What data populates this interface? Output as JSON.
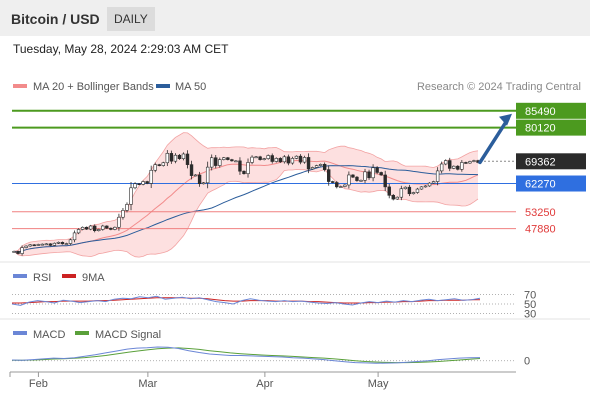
{
  "header": {
    "title": "Bitcoin / USD",
    "timeframe": "DAILY"
  },
  "timestamp": "Tuesday, May 28, 2024 2:29:03 AM CET",
  "colors": {
    "bg": "#ffffff",
    "band_fill": "#fde0e0",
    "band_line": "#f2a2a2",
    "ma20": "#f28b8b",
    "ma50": "#2b5d9b",
    "bull": "#ffffff",
    "bear": "#2b2b2b",
    "resistance": "#4c9a1f",
    "pivot": "#2f6fe0",
    "support": "#f08080",
    "last": "#2b2b2b",
    "arrow": "#2b5d9b",
    "rsi": "#6b86d6",
    "rsi_ma": "#cc2222",
    "macd": "#6b86d6",
    "signal": "#5aa03a"
  },
  "chart_data": [
    {
      "type": "candlestick",
      "title": "Bitcoin / USD",
      "legend": [
        {
          "label": "MA 20 + Bollinger Bands",
          "color": "#f28b8b"
        },
        {
          "label": "MA 50",
          "color": "#2b5d9b"
        }
      ],
      "source": "Research © 2024 Trading Central",
      "x_ticks": [
        "Feb",
        "Mar",
        "Apr",
        "May"
      ],
      "x_range": [
        "2024-01-25",
        "2024-05-28"
      ],
      "y_range": [
        40400,
        88300
      ],
      "start_close": 40600,
      "close": [
        40600,
        39900,
        41800,
        42300,
        42700,
        42600,
        42800,
        42900,
        43000,
        42500,
        43200,
        43500,
        43000,
        43100,
        44300,
        46500,
        47600,
        48300,
        47700,
        48700,
        47200,
        47600,
        48700,
        48000,
        47600,
        48300,
        51500,
        53700,
        55600,
        60900,
        62200,
        62000,
        62900,
        62300,
        66500,
        68300,
        68000,
        68900,
        71900,
        69400,
        71300,
        70200,
        71700,
        68300,
        64800,
        65000,
        62200,
        62500,
        67500,
        70500,
        68000,
        69900,
        70500,
        69900,
        69500,
        69500,
        66200,
        65400,
        69000,
        70700,
        70800,
        69900,
        70200,
        71200,
        69300,
        70300,
        69200,
        70800,
        68800,
        70300,
        71000,
        69100,
        70600,
        66900,
        67400,
        68000,
        68400,
        66700,
        62900,
        62600,
        61200,
        61300,
        61800,
        65000,
        64300,
        63200,
        63300,
        66000,
        64100,
        67300,
        65800,
        65000,
        61200,
        58500,
        57300,
        57900,
        60600,
        61100,
        59000,
        59400,
        60500,
        61200,
        61500,
        62400,
        62900,
        66300,
        68500,
        69600,
        67100,
        67800,
        66800,
        69000,
        68800,
        69300,
        69600,
        69000
      ],
      "levels": [
        {
          "label": "85490",
          "value": 85490,
          "kind": "resistance"
        },
        {
          "label": "80120",
          "value": 80120,
          "kind": "resistance"
        },
        {
          "label": "69362",
          "value": 69362,
          "kind": "last"
        },
        {
          "label": "62270",
          "value": 62270,
          "kind": "pivot"
        },
        {
          "label": "53250",
          "value": 53250,
          "kind": "support"
        },
        {
          "label": "47880",
          "value": 47880,
          "kind": "support"
        }
      ],
      "projection": {
        "from": 69000,
        "to": 85490
      }
    },
    {
      "type": "line",
      "title": "RSI",
      "legend": [
        {
          "label": "RSI",
          "color": "#6b86d6"
        },
        {
          "label": "9MA",
          "color": "#cc2222"
        }
      ],
      "y_ticks": [
        "70",
        "50",
        "30"
      ],
      "y_range": [
        25,
        75
      ],
      "series": [
        {
          "name": "RSI",
          "values": [
            50,
            47,
            54,
            57,
            55,
            52,
            58,
            56,
            53,
            55,
            57,
            55,
            60,
            62,
            61,
            65,
            63,
            66,
            60,
            62,
            64,
            61,
            63,
            59,
            55,
            53,
            50,
            57,
            61,
            58,
            56,
            55,
            57,
            55,
            56,
            54,
            52,
            51,
            53,
            50,
            48,
            52,
            55,
            53,
            56,
            54,
            57,
            55,
            58,
            60,
            57,
            59,
            61,
            58,
            59,
            62
          ]
        },
        {
          "name": "9MA",
          "values": [
            52,
            52,
            53,
            54,
            55,
            55,
            56,
            56,
            56,
            56,
            57,
            57,
            58,
            59,
            60,
            61,
            62,
            63,
            63,
            63,
            63,
            62,
            62,
            61,
            59,
            57,
            56,
            56,
            57,
            57,
            57,
            56,
            56,
            56,
            56,
            55,
            55,
            54,
            53,
            52,
            52,
            52,
            53,
            53,
            54,
            54,
            55,
            55,
            56,
            57,
            57,
            58,
            58,
            58,
            59,
            59
          ]
        }
      ]
    },
    {
      "type": "line",
      "title": "MACD",
      "legend": [
        {
          "label": "MACD",
          "color": "#6b86d6"
        },
        {
          "label": "MACD Signal",
          "color": "#5aa03a"
        }
      ],
      "y_ticks": [
        "0"
      ],
      "y_range": [
        -2500,
        4500
      ],
      "series": [
        {
          "name": "MACD",
          "values": [
            200,
            150,
            300,
            500,
            700,
            600,
            800,
            1200,
            1600,
            2100,
            2600,
            3100,
            3400,
            3500,
            3700,
            3600,
            3300,
            2700,
            2200,
            1800,
            1600,
            1400,
            1400,
            1300,
            1200,
            1100,
            1000,
            800,
            700,
            500,
            300,
            0,
            -300,
            -500,
            -600,
            -700,
            -650,
            -600,
            -400,
            -200,
            0,
            300,
            500,
            700,
            800,
            850
          ]
        },
        {
          "name": "MACD Signal",
          "values": [
            100,
            150,
            200,
            300,
            450,
            550,
            650,
            850,
            1100,
            1400,
            1800,
            2200,
            2600,
            2900,
            3200,
            3400,
            3450,
            3300,
            3050,
            2700,
            2400,
            2100,
            1900,
            1700,
            1550,
            1400,
            1300,
            1150,
            1000,
            850,
            700,
            500,
            250,
            0,
            -200,
            -350,
            -450,
            -500,
            -500,
            -450,
            -350,
            -200,
            0,
            200,
            400,
            600
          ]
        }
      ]
    }
  ]
}
